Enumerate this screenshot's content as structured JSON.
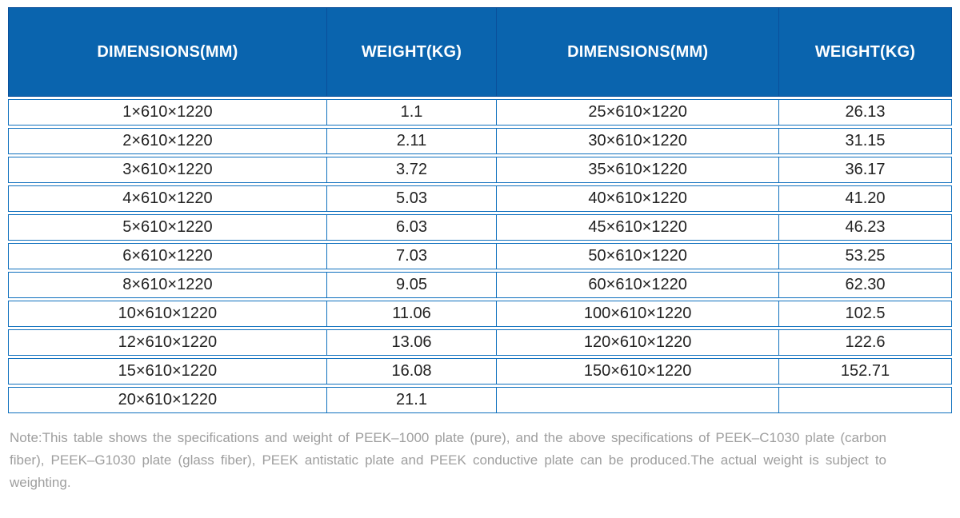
{
  "header": {
    "columns": [
      "DIMENSIONS(MM)",
      "WEIGHT(KG)",
      "DIMENSIONS(MM)",
      "WEIGHT(KG)"
    ]
  },
  "table": {
    "rows": [
      [
        "1×610×1220",
        "1.1",
        "25×610×1220",
        "26.13"
      ],
      [
        "2×610×1220",
        "2.11",
        "30×610×1220",
        "31.15"
      ],
      [
        "3×610×1220",
        "3.72",
        "35×610×1220",
        "36.17"
      ],
      [
        "4×610×1220",
        "5.03",
        "40×610×1220",
        "41.20"
      ],
      [
        "5×610×1220",
        "6.03",
        "45×610×1220",
        "46.23"
      ],
      [
        "6×610×1220",
        "7.03",
        "50×610×1220",
        "53.25"
      ],
      [
        "8×610×1220",
        "9.05",
        "60×610×1220",
        "62.30"
      ],
      [
        "10×610×1220",
        "11.06",
        "100×610×1220",
        "102.5"
      ],
      [
        "12×610×1220",
        "13.06",
        "120×610×1220",
        "122.6"
      ],
      [
        "15×610×1220",
        "16.08",
        "150×610×1220",
        "152.71"
      ],
      [
        "20×610×1220",
        "21.1",
        "",
        ""
      ]
    ]
  },
  "note": {
    "text": "Note:This table shows the specifications and weight of PEEK–1000 plate (pure), and the above specifications of PEEK–C1030 plate (carbon fiber), PEEK–G1030 plate (glass fiber), PEEK antistatic plate and PEEK conductive plate can be produced.The actual weight is subject to weighting."
  },
  "colors": {
    "header_bg": "#0a64ae",
    "header_divider": "#0a4f9a",
    "row_border": "#0f70be",
    "data_text": "#222222",
    "note_text": "#9e9e9e",
    "page_bg": "#ffffff"
  }
}
